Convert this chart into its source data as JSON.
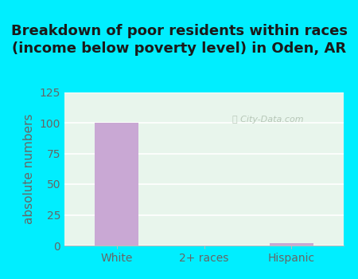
{
  "title": "Breakdown of poor residents within races\n(income below poverty level) in Oden, AR",
  "categories": [
    "White",
    "2+ races",
    "Hispanic"
  ],
  "values": [
    100,
    0,
    2
  ],
  "bar_color": "#c9a8d4",
  "ylabel": "absolute numbers",
  "ylim": [
    0,
    125
  ],
  "yticks": [
    0,
    25,
    50,
    75,
    100,
    125
  ],
  "background_outer": "#00eeff",
  "background_plot": "#e8f5ec",
  "title_fontsize": 13,
  "ylabel_fontsize": 11,
  "tick_fontsize": 10,
  "title_color": "#1a1a1a",
  "axis_label_color": "#666666",
  "grid_color": "#ffffff",
  "watermark": "City-Data.com",
  "watermark_color": "#aabbaa"
}
